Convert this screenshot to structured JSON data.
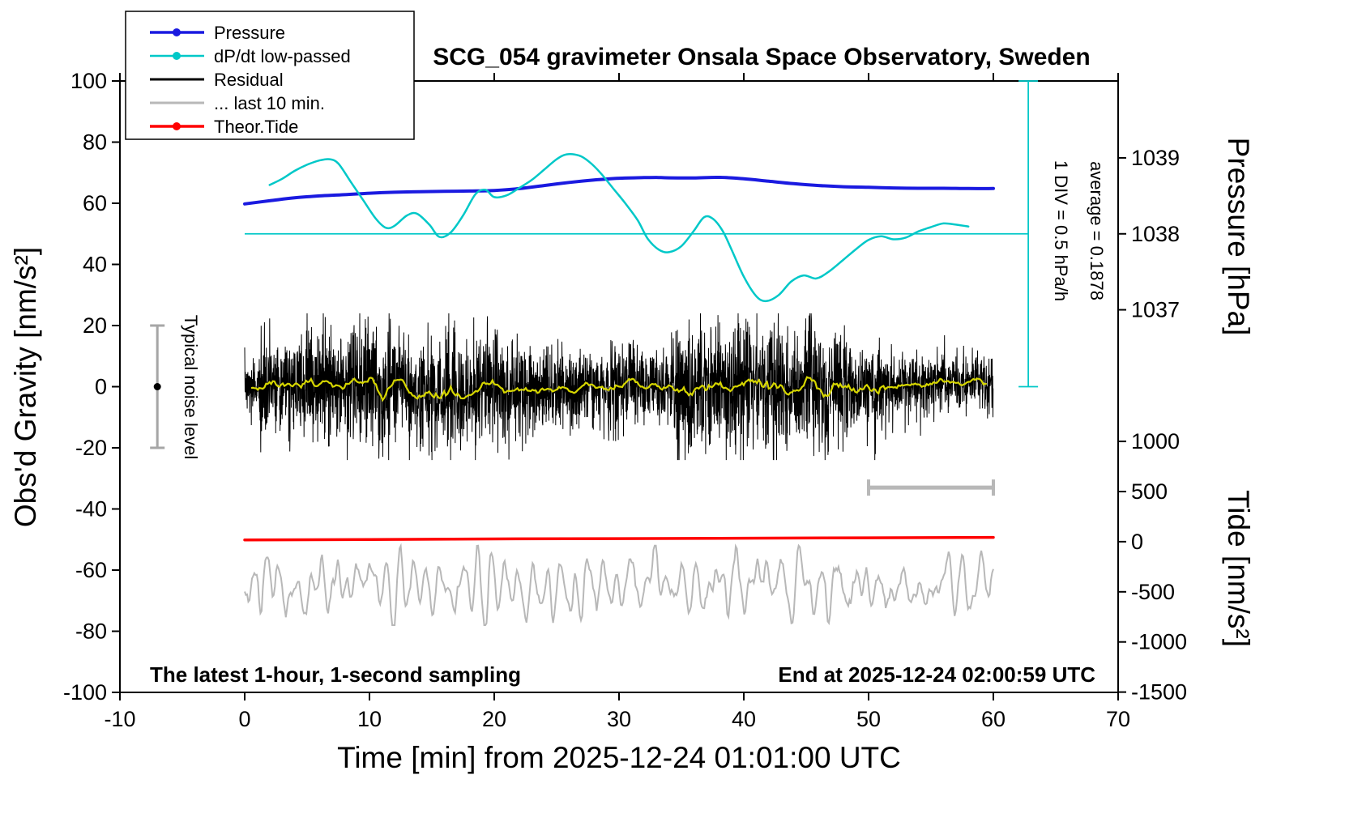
{
  "title": "SCG_054 gravimeter Onsala Space Observatory, Sweden",
  "annotations": {
    "noise_label": "Typical noise level",
    "div_label": "1 DIV = 0.5 hPa/h",
    "average_label": "average = 0.1878",
    "footer_left": "The latest 1-hour, 1-second sampling",
    "footer_right": "End at 2025-12-24 02:00:59 UTC"
  },
  "legend": {
    "position": "top-left",
    "items": [
      {
        "label": "Pressure",
        "color": "#1a1ae0",
        "line_width": 3.5,
        "marker": true
      },
      {
        "label": "dP/dt low-passed",
        "color": "#00c8c8",
        "line_width": 2.5,
        "marker": true
      },
      {
        "label": "Residual",
        "color": "#000000",
        "line_width": 3,
        "marker": false
      },
      {
        "label": "... last 10 min.",
        "color": "#b8b8b8",
        "line_width": 3,
        "marker": false
      },
      {
        "label": "Theor.Tide",
        "color": "#ff0000",
        "line_width": 3.5,
        "marker": true
      }
    ]
  },
  "chart_data": {
    "type": "line",
    "title": "SCG_054 gravimeter Onsala Space Observatory, Sweden",
    "xlabel": "Time [min] from 2025-12-24 01:01:00 UTC",
    "ylabel_left": "Obs'd Gravity [nm/s²]",
    "ylabel_right_top": "Pressure [hPa]",
    "ylabel_right_bottom": "Tide [nm/s²]",
    "xlim": [
      -10,
      70
    ],
    "ylim_left": [
      -100,
      100
    ],
    "grid": false,
    "x_ticks": [
      -10,
      0,
      10,
      20,
      30,
      40,
      50,
      60,
      70
    ],
    "y_left_ticks": [
      -100,
      -80,
      -60,
      -40,
      -20,
      0,
      20,
      40,
      60,
      80,
      100
    ],
    "pressure_axis": {
      "ticks": [
        1037,
        1038,
        1039
      ],
      "ref_hPa": 1038,
      "ref_gravity": 50,
      "gravity_per_hPa": 24.85
    },
    "tide_axis": {
      "ticks": [
        1000,
        500,
        0,
        -500,
        -1000,
        -1500
      ],
      "ref_tide": 0,
      "ref_gravity": -50.7,
      "gravity_per_tide": 0.0328
    },
    "dpdt_scale": {
      "zero_gravity": 50,
      "gravity_per_unit": 20,
      "unit": "hPa/h",
      "baseline_x": [
        0,
        62.8
      ],
      "baseline_gravity": 50,
      "ruler_x": 62.8,
      "ruler_span_gravity": [
        0,
        100
      ],
      "color": "#00c8c8"
    },
    "series": {
      "pressure_hPa": {
        "color": "#1a1ae0",
        "width": 4,
        "points": [
          [
            0,
            1038.394
          ],
          [
            2,
            1038.435
          ],
          [
            4,
            1038.474
          ],
          [
            6,
            1038.499
          ],
          [
            8,
            1038.515
          ],
          [
            10,
            1038.535
          ],
          [
            12,
            1038.547
          ],
          [
            14,
            1038.555
          ],
          [
            16,
            1038.559
          ],
          [
            18,
            1038.563
          ],
          [
            20,
            1038.571
          ],
          [
            22,
            1038.595
          ],
          [
            24,
            1038.636
          ],
          [
            26,
            1038.676
          ],
          [
            28,
            1038.708
          ],
          [
            30,
            1038.732
          ],
          [
            32,
            1038.74
          ],
          [
            33,
            1038.742
          ],
          [
            34,
            1038.737
          ],
          [
            36,
            1038.736
          ],
          [
            38,
            1038.744
          ],
          [
            40,
            1038.724
          ],
          [
            42,
            1038.692
          ],
          [
            44,
            1038.66
          ],
          [
            46,
            1038.636
          ],
          [
            48,
            1038.62
          ],
          [
            50,
            1038.612
          ],
          [
            52,
            1038.604
          ],
          [
            54,
            1038.6
          ],
          [
            56,
            1038.6
          ],
          [
            58,
            1038.596
          ],
          [
            60,
            1038.596
          ]
        ]
      },
      "dpdt_hPa_per_h": {
        "color": "#00c8c8",
        "width": 2.5,
        "points": [
          [
            2,
            0.8
          ],
          [
            3,
            0.9
          ],
          [
            4,
            1.03
          ],
          [
            5,
            1.13
          ],
          [
            6,
            1.2
          ],
          [
            6.8,
            1.22
          ],
          [
            7.5,
            1.15
          ],
          [
            8.5,
            0.85
          ],
          [
            9.5,
            0.55
          ],
          [
            10.5,
            0.25
          ],
          [
            11.3,
            0.1
          ],
          [
            12,
            0.13
          ],
          [
            13,
            0.3
          ],
          [
            13.8,
            0.33
          ],
          [
            14.8,
            0.15
          ],
          [
            15.6,
            -0.05
          ],
          [
            16.5,
            0.02
          ],
          [
            17.5,
            0.3
          ],
          [
            18.5,
            0.65
          ],
          [
            19.3,
            0.72
          ],
          [
            20,
            0.6
          ],
          [
            21,
            0.63
          ],
          [
            22,
            0.75
          ],
          [
            23,
            0.88
          ],
          [
            24,
            1.05
          ],
          [
            25,
            1.22
          ],
          [
            25.8,
            1.3
          ],
          [
            26.8,
            1.28
          ],
          [
            27.6,
            1.18
          ],
          [
            28.5,
            1.0
          ],
          [
            29.5,
            0.75
          ],
          [
            30.5,
            0.5
          ],
          [
            31.5,
            0.22
          ],
          [
            32.3,
            -0.08
          ],
          [
            33.2,
            -0.26
          ],
          [
            34,
            -0.3
          ],
          [
            35,
            -0.2
          ],
          [
            36,
            0.05
          ],
          [
            36.8,
            0.27
          ],
          [
            37.5,
            0.25
          ],
          [
            38.3,
            0.05
          ],
          [
            39,
            -0.25
          ],
          [
            40,
            -0.7
          ],
          [
            41,
            -1.02
          ],
          [
            41.8,
            -1.1
          ],
          [
            42.8,
            -1.0
          ],
          [
            43.8,
            -0.78
          ],
          [
            44.8,
            -0.68
          ],
          [
            45.8,
            -0.73
          ],
          [
            46.8,
            -0.62
          ],
          [
            48,
            -0.42
          ],
          [
            49,
            -0.25
          ],
          [
            50,
            -0.1
          ],
          [
            51,
            -0.04
          ],
          [
            52,
            -0.09
          ],
          [
            53,
            -0.06
          ],
          [
            54,
            0.04
          ],
          [
            55,
            0.11
          ],
          [
            56,
            0.17
          ],
          [
            57,
            0.15
          ],
          [
            58,
            0.12
          ]
        ]
      },
      "theor_tide": {
        "color": "#ff0000",
        "width": 3.5,
        "points": [
          [
            0,
            18
          ],
          [
            10,
            22
          ],
          [
            20,
            27
          ],
          [
            30,
            31
          ],
          [
            40,
            35
          ],
          [
            50,
            39
          ],
          [
            60,
            43
          ]
        ]
      },
      "residual": {
        "color": "#000000",
        "width": 1,
        "smooth_color": "#d6d600",
        "smooth_width": 2.2,
        "x_range": [
          0,
          60
        ],
        "mean": 0,
        "base_std": 4.2,
        "clip": 24,
        "samples": 3600,
        "seed": 20251224
      },
      "last_10_min": {
        "color": "#b8b8b8",
        "width": 2,
        "x_range": [
          0,
          60
        ],
        "offset": -65,
        "amplitude": 9,
        "samples": 620,
        "seed": 54321
      }
    },
    "noise_marker": {
      "x": -7,
      "gravity": 0,
      "span": [
        -20,
        20
      ],
      "color": "#a6a6a6"
    },
    "scale_bar": {
      "x_range": [
        50,
        60
      ],
      "gravity": -33,
      "color": "#b8b8b8"
    }
  }
}
